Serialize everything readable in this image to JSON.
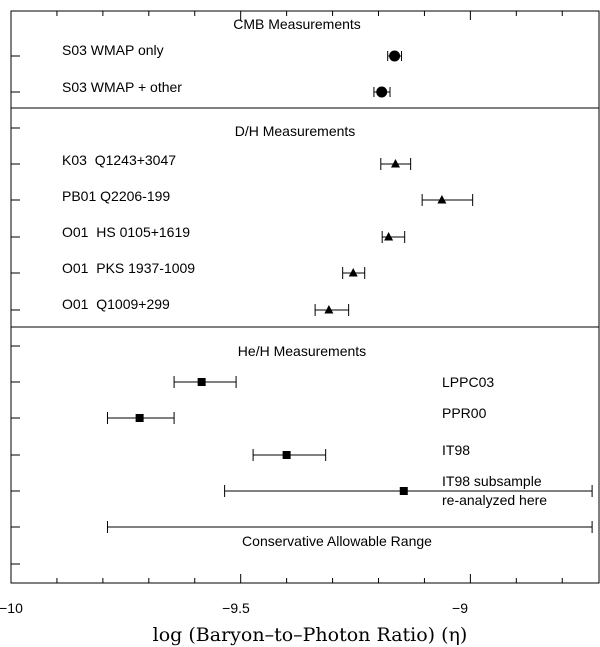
{
  "chart_data": {
    "type": "scatter",
    "xlabel": "log (Baryon–to–Photon Ratio) (η)",
    "xlim": [
      -10,
      -8.72
    ],
    "xticks": [
      {
        "value": -10,
        "label": "−10"
      },
      {
        "value": -9.5,
        "label": "−9.5"
      },
      {
        "value": -9,
        "label": "−9"
      }
    ],
    "sections": [
      {
        "title": "CMB Measurements",
        "marker": "circle",
        "rows": [
          {
            "label": "S03 WMAP only",
            "value": -9.165,
            "err_low": -9.18,
            "err_high": -9.15
          },
          {
            "label": "S03 WMAP + other",
            "value": -9.193,
            "err_low": -9.21,
            "err_high": -9.175
          }
        ]
      },
      {
        "title": "D/H Measurements",
        "marker": "triangle",
        "rows": [
          {
            "label": "K03  Q1243+3047",
            "value": -9.163,
            "err_low": -9.195,
            "err_high": -9.13
          },
          {
            "label": "PB01 Q2206-199",
            "value": -9.062,
            "err_low": -9.105,
            "err_high": -8.995
          },
          {
            "label": "O01  HS 0105+1619",
            "value": -9.178,
            "err_low": -9.192,
            "err_high": -9.143
          },
          {
            "label": "O01  PKS 1937-1009",
            "value": -9.255,
            "err_low": -9.278,
            "err_high": -9.23
          },
          {
            "label": "O01  Q1009+299",
            "value": -9.308,
            "err_low": -9.338,
            "err_high": -9.265
          }
        ]
      },
      {
        "title": "He/H Measurements",
        "marker": "square",
        "rows": [
          {
            "label": "LPPC03",
            "value": -9.585,
            "err_low": -9.645,
            "err_high": -9.51
          },
          {
            "label": "PPR00",
            "value": -9.72,
            "err_low": -9.79,
            "err_high": -9.645
          },
          {
            "label": "IT98",
            "value": -9.4,
            "err_low": -9.473,
            "err_high": -9.315
          },
          {
            "label": "IT98 subsample",
            "label2": "re-analyzed here",
            "value": -9.145,
            "err_low": -9.535,
            "err_high": -8.735
          }
        ],
        "range": {
          "label": "Conservative Allowable Range",
          "low": -9.79,
          "high": -8.735
        }
      }
    ]
  }
}
